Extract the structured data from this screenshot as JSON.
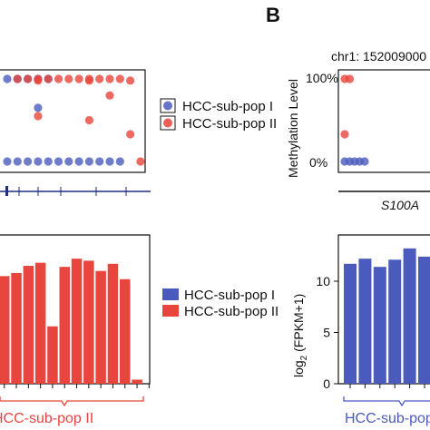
{
  "panel_b_letter": "B",
  "legend_top": [
    {
      "label": "HCC-sub-pop I",
      "color": "#4b5bbd"
    },
    {
      "label": "HCC-sub-pop II",
      "color": "#e8453c"
    }
  ],
  "legend_bottom": [
    {
      "label": "HCC-sub-pop I",
      "color": "#4b5bbd"
    },
    {
      "label": "HCC-sub-pop II",
      "color": "#e8453c"
    }
  ],
  "colors": {
    "pop1": "#4b5bbd",
    "pop2": "#e8453c",
    "gene_track": "#1f2f7a"
  },
  "chart_data": [
    {
      "type": "scatter",
      "panel": "A-methylation",
      "series": [
        {
          "name": "HCC-sub-pop I",
          "points": [
            [
              1,
              100
            ],
            [
              2,
              100
            ],
            [
              3,
              100
            ],
            [
              4,
              100
            ],
            [
              5,
              100
            ],
            [
              1,
              0
            ],
            [
              2,
              0
            ],
            [
              3,
              0
            ],
            [
              4,
              0
            ],
            [
              5,
              0
            ],
            [
              6,
              0
            ],
            [
              7,
              0
            ],
            [
              8,
              0
            ],
            [
              9,
              0
            ],
            [
              10,
              0
            ],
            [
              11,
              0
            ],
            [
              12,
              0
            ],
            [
              4,
              65
            ]
          ]
        },
        {
          "name": "HCC-sub-pop II",
          "points": [
            [
              2,
              100
            ],
            [
              3,
              100
            ],
            [
              4,
              100
            ],
            [
              5,
              100
            ],
            [
              6,
              100
            ],
            [
              7,
              100
            ],
            [
              8,
              100
            ],
            [
              9,
              100
            ],
            [
              10,
              100
            ],
            [
              11,
              100
            ],
            [
              12,
              100
            ],
            [
              4,
              98
            ],
            [
              9,
              98
            ],
            [
              13,
              98
            ],
            [
              11,
              80
            ],
            [
              4,
              55
            ],
            [
              13,
              33
            ],
            [
              9,
              50
            ],
            [
              14,
              0
            ]
          ]
        }
      ]
    },
    {
      "type": "scatter",
      "panel": "B-methylation",
      "title": "chr1: 152009000",
      "ylabel": "Methylation Level",
      "yticks": [
        "100%",
        "0%"
      ],
      "gene": "S100A",
      "series": [
        {
          "name": "HCC-sub-pop I",
          "points": [
            [
              0,
              0
            ],
            [
              1,
              0
            ],
            [
              2,
              0
            ],
            [
              3,
              0
            ],
            [
              4,
              0
            ]
          ]
        },
        {
          "name": "HCC-sub-pop II",
          "points": [
            [
              0,
              100
            ],
            [
              1,
              100
            ],
            [
              0,
              33
            ]
          ]
        }
      ]
    },
    {
      "type": "bar",
      "panel": "A-expression",
      "series": [
        {
          "name": "HCC-sub-pop II",
          "values": [
            10.5,
            10.8,
            11.5,
            11.8,
            5.6,
            11.4,
            12.2,
            12.0,
            11.0,
            11.7,
            10.2,
            0.4
          ]
        }
      ],
      "group_label": "HCC-sub-pop II"
    },
    {
      "type": "bar",
      "panel": "B-expression",
      "ylabel": "log2 (FPKM+1)",
      "yticks": [
        10,
        5,
        0
      ],
      "ylim": [
        0,
        14.5
      ],
      "series": [
        {
          "name": "HCC-sub-pop I",
          "values": [
            11.7,
            12.2,
            11.4,
            12.1,
            13.2,
            12.4
          ]
        }
      ],
      "group_label": "HCC-sub-pop I"
    }
  ]
}
